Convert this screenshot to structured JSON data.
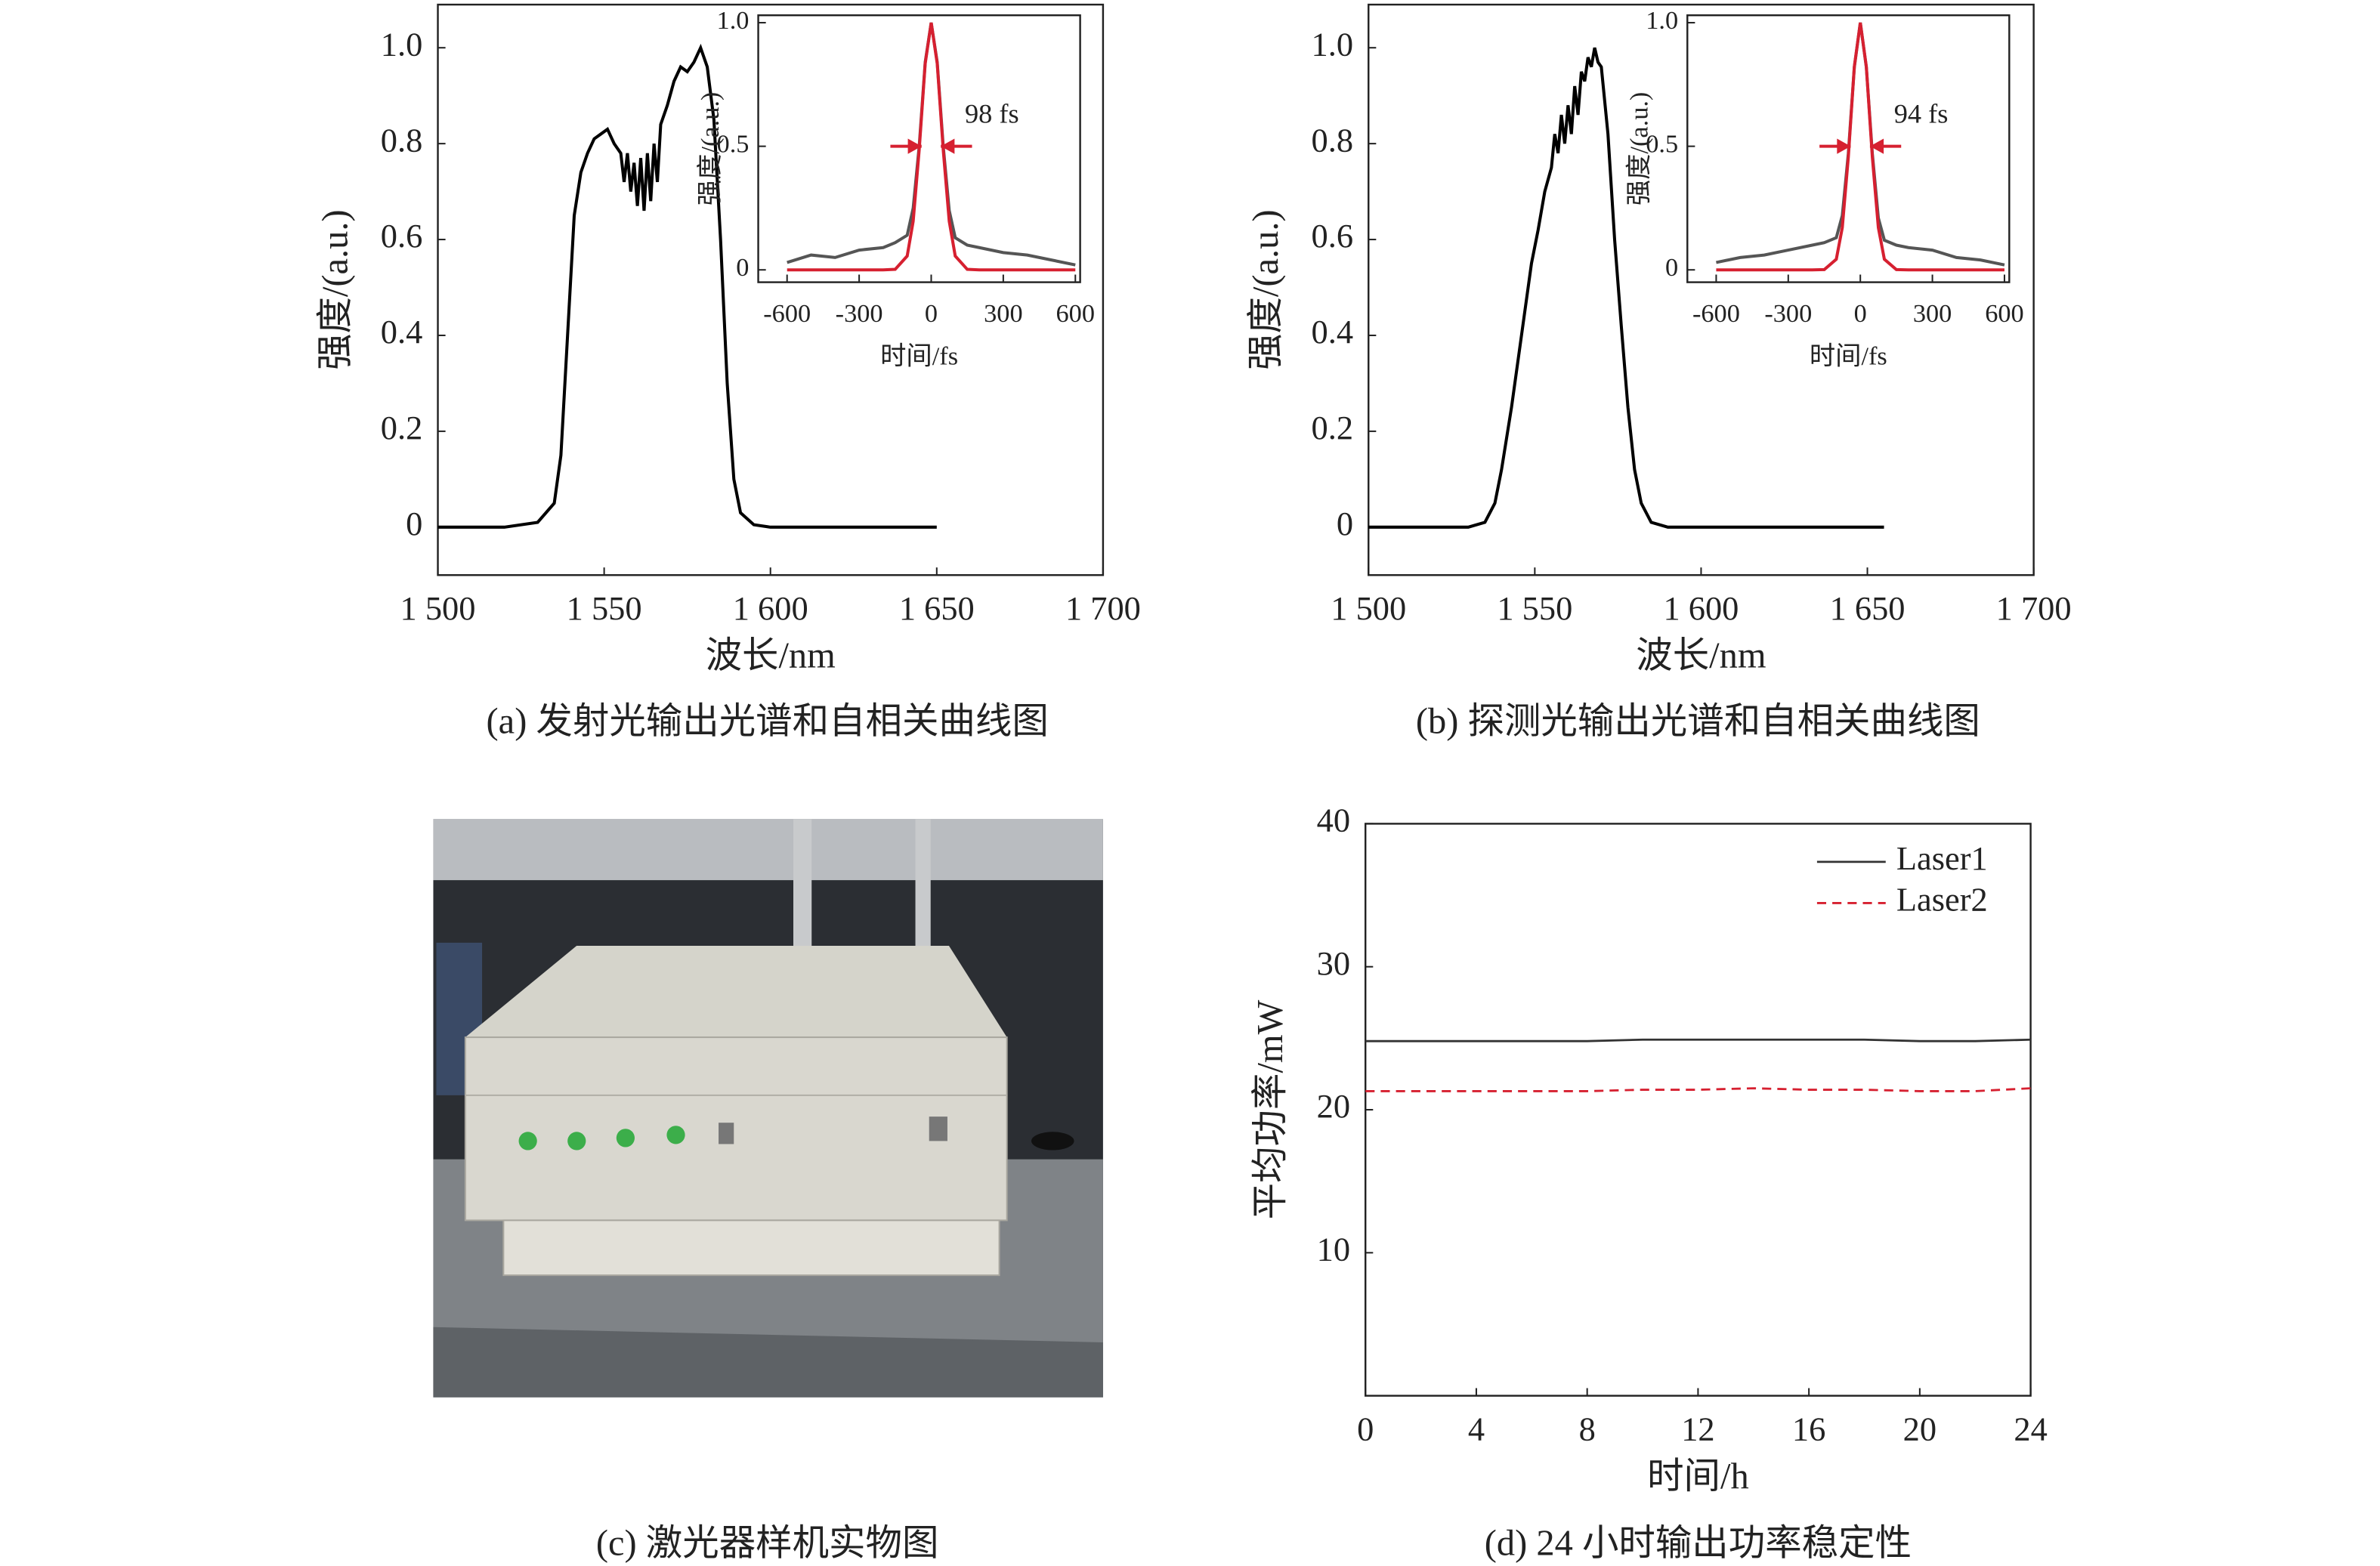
{
  "chart_data": [
    {
      "type": "line",
      "caption": "(a) 发射光输出光谱和自相关曲线图",
      "xlabel": "波长/nm",
      "ylabel": "强度/(a.u.)",
      "x": [
        1500,
        1520,
        1530,
        1535,
        1537,
        1539,
        1541,
        1543,
        1545,
        1547,
        1549,
        1551,
        1553,
        1555,
        1556,
        1557,
        1558,
        1559,
        1560,
        1561,
        1562,
        1563,
        1564,
        1565,
        1566,
        1567,
        1569,
        1571,
        1573,
        1575,
        1577,
        1579,
        1581,
        1583,
        1585,
        1587,
        1589,
        1591,
        1595,
        1600,
        1625,
        1650
      ],
      "series": [
        {
          "color": "#000000",
          "values": [
            0,
            0,
            0.01,
            0.05,
            0.15,
            0.4,
            0.65,
            0.74,
            0.78,
            0.81,
            0.82,
            0.83,
            0.8,
            0.78,
            0.72,
            0.78,
            0.7,
            0.76,
            0.67,
            0.77,
            0.66,
            0.78,
            0.68,
            0.8,
            0.72,
            0.84,
            0.88,
            0.93,
            0.96,
            0.95,
            0.97,
            1.0,
            0.96,
            0.85,
            0.6,
            0.3,
            0.1,
            0.03,
            0.005,
            0,
            0,
            0
          ]
        }
      ],
      "xlim": [
        1500,
        1700
      ],
      "ylim": [
        -0.1,
        1.09
      ],
      "xticks": [
        {
          "value": 1500,
          "label": "1 500"
        },
        {
          "value": 1550,
          "label": "1 550"
        },
        {
          "value": 1600,
          "label": "1 600"
        },
        {
          "value": 1650,
          "label": "1 650"
        },
        {
          "value": 1700,
          "label": "1 700"
        }
      ],
      "yticks": [
        0,
        0.2,
        0.4,
        0.6,
        0.8,
        {
          "value": 1,
          "label": "1.0"
        }
      ],
      "inset": {
        "type": "line",
        "xlabel": "时间/fs",
        "ylabel": "强度/(a.u.)",
        "annotation": "98 fs",
        "x": [
          -600,
          -500,
          -400,
          -300,
          -200,
          -150,
          -100,
          -75,
          -50,
          -25,
          0,
          25,
          50,
          75,
          100,
          150,
          200,
          300,
          400,
          500,
          600
        ],
        "series": [
          {
            "color": "#555555",
            "values": [
              0.03,
              0.06,
              0.05,
              0.08,
              0.09,
              0.11,
              0.14,
              0.25,
              0.5,
              0.84,
              1,
              0.84,
              0.5,
              0.24,
              0.13,
              0.1,
              0.09,
              0.07,
              0.06,
              0.04,
              0.02
            ]
          },
          {
            "color": "#d62030",
            "values": [
              0,
              0,
              0,
              0,
              0,
              0.002,
              0.056,
              0.197,
              0.486,
              0.835,
              1,
              0.835,
              0.486,
              0.197,
              0.056,
              0.002,
              0,
              0,
              0,
              0,
              0
            ]
          }
        ],
        "xlim": [
          -720,
          620
        ],
        "ylim": [
          -0.05,
          1.03
        ],
        "xticks": [
          -600,
          -300,
          0,
          300,
          600
        ],
        "yticks": [
          0,
          0.5,
          {
            "value": 1,
            "label": "1.0"
          }
        ]
      }
    },
    {
      "type": "line",
      "caption": "(b) 探测光输出光谱和自相关曲线图",
      "xlabel": "波长/nm",
      "ylabel": "强度/(a.u.)",
      "x": [
        1500,
        1530,
        1535,
        1538,
        1540,
        1543,
        1546,
        1549,
        1551,
        1553,
        1555,
        1556,
        1557,
        1558,
        1559,
        1560,
        1561,
        1562,
        1563,
        1564,
        1565,
        1566,
        1567,
        1568,
        1569,
        1570,
        1572,
        1574,
        1576,
        1578,
        1580,
        1582,
        1585,
        1590,
        1620,
        1655
      ],
      "series": [
        {
          "color": "#000000",
          "values": [
            0,
            0,
            0.01,
            0.05,
            0.12,
            0.25,
            0.4,
            0.55,
            0.62,
            0.7,
            0.75,
            0.82,
            0.78,
            0.86,
            0.8,
            0.88,
            0.82,
            0.92,
            0.86,
            0.95,
            0.93,
            0.98,
            0.96,
            1.0,
            0.97,
            0.96,
            0.82,
            0.6,
            0.42,
            0.25,
            0.12,
            0.05,
            0.01,
            0,
            0,
            0
          ]
        }
      ],
      "xlim": [
        1500,
        1700
      ],
      "ylim": [
        -0.1,
        1.09
      ],
      "xticks": [
        {
          "value": 1500,
          "label": "1 500"
        },
        {
          "value": 1550,
          "label": "1 550"
        },
        {
          "value": 1600,
          "label": "1 600"
        },
        {
          "value": 1650,
          "label": "1 650"
        },
        {
          "value": 1700,
          "label": "1 700"
        }
      ],
      "yticks": [
        0,
        0.2,
        0.4,
        0.6,
        0.8,
        {
          "value": 1,
          "label": "1.0"
        }
      ],
      "inset": {
        "type": "line",
        "xlabel": "时间/fs",
        "ylabel": "强度/(a.u.)",
        "annotation": "94 fs",
        "x": [
          -600,
          -500,
          -400,
          -300,
          -200,
          -150,
          -100,
          -75,
          -50,
          -25,
          0,
          25,
          50,
          75,
          100,
          150,
          200,
          300,
          400,
          500,
          600
        ],
        "series": [
          {
            "color": "#555555",
            "values": [
              0.03,
              0.05,
              0.06,
              0.08,
              0.1,
              0.11,
              0.13,
              0.22,
              0.47,
              0.82,
              1,
              0.82,
              0.47,
              0.21,
              0.12,
              0.1,
              0.09,
              0.08,
              0.05,
              0.04,
              0.02
            ]
          },
          {
            "color": "#d62030",
            "values": [
              0,
              0,
              0,
              0,
              0,
              0.001,
              0.043,
              0.171,
              0.456,
              0.822,
              1,
              0.822,
              0.456,
              0.171,
              0.043,
              0.001,
              0,
              0,
              0,
              0,
              0
            ]
          }
        ],
        "xlim": [
          -720,
          620
        ],
        "ylim": [
          -0.05,
          1.03
        ],
        "xticks": [
          -600,
          -300,
          0,
          300,
          600
        ],
        "yticks": [
          0,
          0.5,
          {
            "value": 1,
            "label": "1.0"
          }
        ]
      }
    },
    {
      "type": "image",
      "caption": "(c) 激光器样机实物图"
    },
    {
      "type": "line",
      "caption": "(d) 24 小时输出功率稳定性",
      "xlabel": "时间/h",
      "ylabel": "平均功率/mW",
      "x": [
        0,
        2,
        4,
        6,
        8,
        10,
        12,
        14,
        16,
        18,
        20,
        22,
        24
      ],
      "series": [
        {
          "name": "Laser1",
          "color": "#333333",
          "linestyle": "solid",
          "values": [
            24.8,
            24.8,
            24.8,
            24.8,
            24.8,
            24.9,
            24.9,
            24.9,
            24.9,
            24.9,
            24.8,
            24.8,
            24.9
          ]
        },
        {
          "name": "Laser2",
          "color": "#d62030",
          "linestyle": "dashed",
          "values": [
            21.3,
            21.3,
            21.3,
            21.3,
            21.3,
            21.4,
            21.4,
            21.5,
            21.4,
            21.4,
            21.3,
            21.3,
            21.5
          ]
        }
      ],
      "xlim": [
        0,
        24
      ],
      "ylim": [
        0,
        40
      ],
      "xticks": [
        0,
        4,
        8,
        12,
        16,
        20,
        24
      ],
      "yticks": [
        10,
        20,
        30,
        40
      ],
      "legend": "upper right"
    }
  ]
}
